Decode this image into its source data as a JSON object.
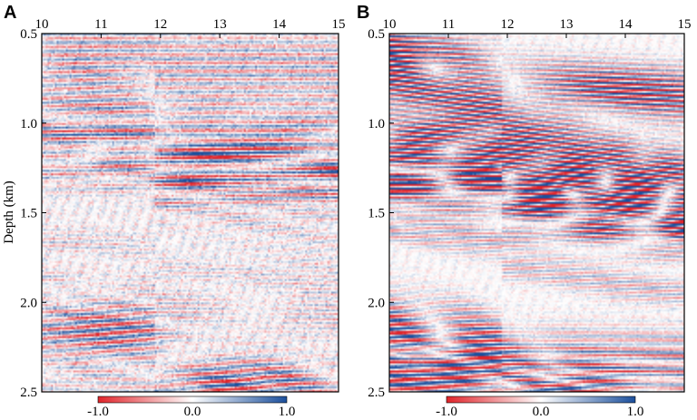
{
  "chart_data": [
    {
      "type": "heatmap",
      "panel": "A",
      "title": "",
      "xlabel": "",
      "ylabel": "Depth (km)",
      "x_ticks": [
        "10",
        "11",
        "12",
        "13",
        "14",
        "15"
      ],
      "y_ticks": [
        "0.5",
        "1.0",
        "1.5",
        "2.0",
        "2.5"
      ],
      "xlim": [
        10,
        15
      ],
      "ylim": [
        0.5,
        2.5
      ],
      "y_inverted": true,
      "x_axis_position": "top",
      "colorscale": {
        "min_color": "#e0242a",
        "mid_color": "#ffffff",
        "max_color": "#1b4f9c"
      },
      "colorbar": {
        "ticks": [
          "-1.0",
          "0.0",
          "1.0"
        ],
        "range": [
          -1.0,
          1.0
        ],
        "placement": "bottom"
      },
      "reflector_strength": 0.45,
      "noise_level": 0.35,
      "grid": false
    },
    {
      "type": "heatmap",
      "panel": "B",
      "title": "",
      "xlabel": "",
      "ylabel": "",
      "x_ticks": [
        "10",
        "11",
        "12",
        "13",
        "14",
        "15"
      ],
      "y_ticks": [
        "0.5",
        "1.0",
        "1.5",
        "2.0",
        "2.5"
      ],
      "xlim": [
        10,
        15
      ],
      "ylim": [
        0.5,
        2.5
      ],
      "y_inverted": true,
      "x_axis_position": "top",
      "colorscale": {
        "min_color": "#e0242a",
        "mid_color": "#ffffff",
        "max_color": "#1b4f9c"
      },
      "colorbar": {
        "ticks": [
          "-1.0",
          "0.0",
          "1.0"
        ],
        "range": [
          -1.0,
          1.0
        ],
        "placement": "bottom"
      },
      "reflector_strength": 0.85,
      "noise_level": 0.18,
      "grid": false
    }
  ]
}
